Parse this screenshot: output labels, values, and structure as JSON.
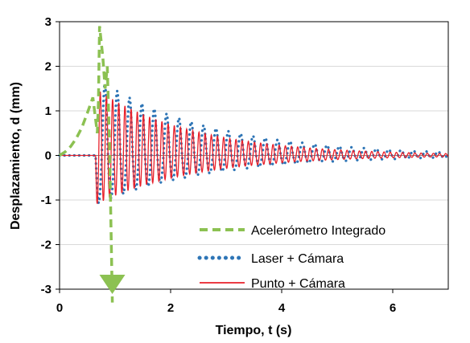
{
  "chart_data": {
    "type": "line",
    "xlabel": "Tiempo, t (s)",
    "ylabel": "Desplazamiento, d (mm)",
    "xlim": [
      0,
      7
    ],
    "ylim": [
      -3,
      3
    ],
    "x_ticks": [
      "0",
      "2",
      "4",
      "6"
    ],
    "y_ticks": [
      "3",
      "2",
      "1",
      "0",
      "-1",
      "-2",
      "-3"
    ],
    "grid": "horizontal",
    "legend_position": "bottom-right",
    "series": [
      {
        "name": "Acelerómetro Integrado",
        "style": "dashed",
        "color": "#8cc152",
        "points": [
          [
            0,
            0
          ],
          [
            0.1,
            0.08
          ],
          [
            0.2,
            0.2
          ],
          [
            0.3,
            0.38
          ],
          [
            0.4,
            0.62
          ],
          [
            0.5,
            0.95
          ],
          [
            0.6,
            1.3
          ],
          [
            0.68,
            0.5
          ],
          [
            0.7,
            1.2
          ],
          [
            0.72,
            2.9
          ],
          [
            0.78,
            2.2
          ],
          [
            0.82,
            1.5
          ],
          [
            0.86,
            2.0
          ],
          [
            0.9,
            0.2
          ],
          [
            0.95,
            -3.3
          ]
        ]
      },
      {
        "name": "Laser + Cámara",
        "style": "dotted",
        "color": "#2e75b6",
        "envelope": {
          "t0": 0.65,
          "amplitude_pos": 1.1,
          "amplitude_neg": -1.75,
          "decay_to_at_7s": 0.05,
          "frequency_hz": 4.5
        }
      },
      {
        "name": "Punto + Cámara",
        "style": "solid",
        "color": "#e8202a",
        "envelope": {
          "t0": 0.65,
          "amplitude_pos": 1.1,
          "amplitude_neg": -1.5,
          "decay_to_at_7s": 0.03,
          "frequency_hz": 9.0
        }
      }
    ]
  }
}
